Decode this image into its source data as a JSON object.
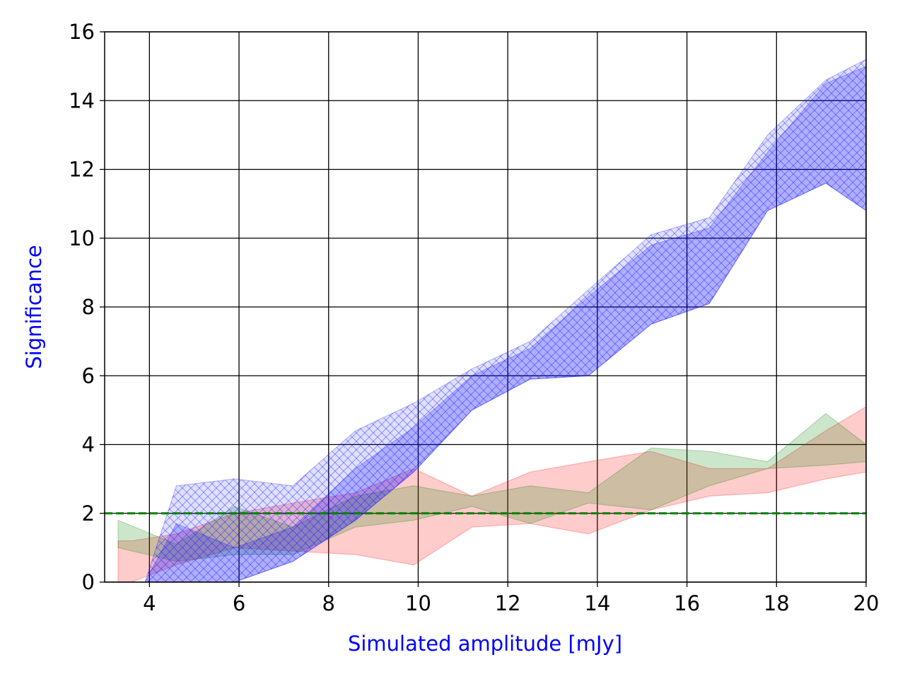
{
  "chart_data": {
    "type": "area",
    "xlabel": "Simulated amplitude [mJy]",
    "ylabel": "Significance",
    "label_color": "#0000ff",
    "xlim": [
      3.0,
      20.0
    ],
    "ylim": [
      0,
      16
    ],
    "xticks": [
      4,
      6,
      8,
      10,
      12,
      14,
      16,
      18,
      20
    ],
    "yticks": [
      0,
      2,
      4,
      6,
      8,
      10,
      12,
      14,
      16
    ],
    "grid": true,
    "series": [
      {
        "color": "#ff0000",
        "fill_opacity": 0.2,
        "hatch": false,
        "x": [
          3.3,
          3.6,
          4.6,
          5.9,
          7.2,
          8.6,
          9.9,
          11.2,
          12.5,
          13.8,
          15.2,
          16.5,
          17.8,
          19.1,
          20.0
        ],
        "lower": [
          0.0,
          0.0,
          0.5,
          1.0,
          0.9,
          0.8,
          0.5,
          1.6,
          1.7,
          1.4,
          2.1,
          2.5,
          2.6,
          3.0,
          3.2
        ],
        "upper": [
          1.2,
          1.2,
          1.4,
          2.0,
          2.3,
          2.6,
          3.3,
          2.5,
          3.2,
          3.5,
          3.8,
          3.3,
          3.3,
          4.4,
          5.1
        ]
      },
      {
        "color": "#008000",
        "fill_opacity": 0.2,
        "hatch": false,
        "x": [
          3.3,
          4.6,
          5.9,
          7.2,
          8.6,
          9.9,
          11.2,
          12.5,
          13.8,
          15.2,
          16.5,
          17.8,
          19.1,
          20.0
        ],
        "lower": [
          1.0,
          0.6,
          0.8,
          0.8,
          1.6,
          1.8,
          2.2,
          1.7,
          2.3,
          2.1,
          2.8,
          3.3,
          3.4,
          3.5
        ],
        "upper": [
          1.8,
          1.1,
          2.2,
          1.6,
          2.5,
          2.8,
          2.5,
          2.8,
          2.6,
          3.9,
          3.8,
          3.5,
          4.9,
          4.0
        ]
      },
      {
        "color": "#0000ff",
        "fill_opacity": 0.12,
        "hatch": true,
        "x": [
          3.9,
          4.6,
          5.9,
          7.2,
          8.6,
          9.9,
          11.2,
          12.5,
          13.8,
          15.2,
          16.5,
          17.8,
          19.1,
          20.0
        ],
        "lower": [
          0.0,
          0.0,
          0.0,
          0.6,
          1.8,
          3.2,
          5.0,
          5.9,
          6.0,
          7.5,
          8.1,
          10.8,
          11.6,
          10.8
        ],
        "upper": [
          0.0,
          2.8,
          3.0,
          2.8,
          4.4,
          5.2,
          6.2,
          7.0,
          8.5,
          10.1,
          10.6,
          13.0,
          14.6,
          15.2
        ]
      },
      {
        "color": "#0000ff",
        "fill_opacity": 0.22,
        "hatch": false,
        "x": [
          3.9,
          4.6,
          5.9,
          7.2,
          8.6,
          9.9,
          11.2,
          12.5,
          13.8,
          15.2,
          16.5,
          17.8,
          19.1,
          20.0
        ],
        "lower": [
          0.0,
          0.0,
          0.0,
          0.6,
          1.8,
          3.2,
          5.0,
          5.9,
          6.0,
          7.5,
          8.1,
          10.8,
          11.6,
          10.8
        ],
        "upper": [
          0.0,
          1.7,
          1.0,
          1.6,
          3.3,
          4.5,
          6.0,
          6.8,
          8.3,
          9.8,
          10.3,
          12.5,
          14.5,
          15.0
        ]
      }
    ],
    "hlines": [
      {
        "y": 2.0,
        "color": "#008000",
        "style": "dashed"
      }
    ]
  }
}
